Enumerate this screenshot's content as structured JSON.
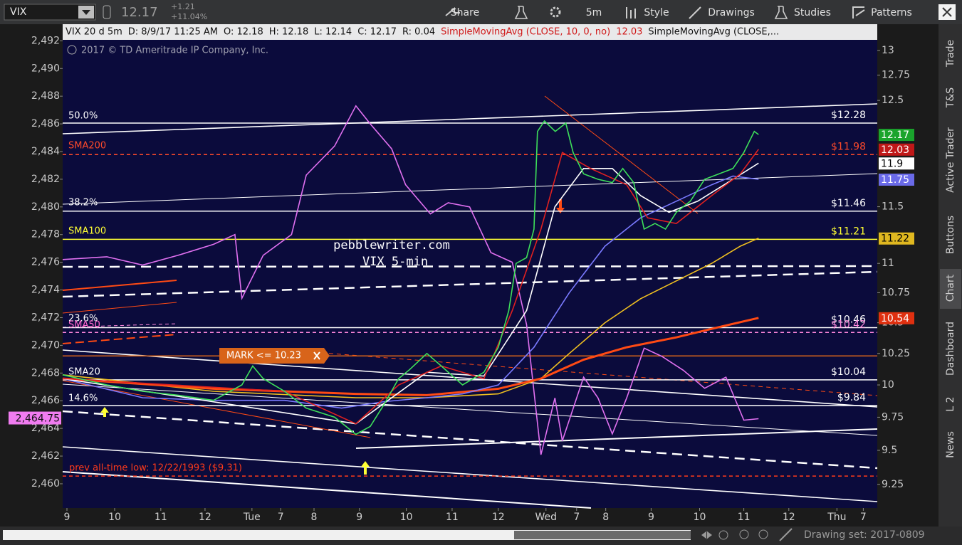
{
  "toolbar": {
    "symbol": "VIX",
    "last": "12.17",
    "change": "+1.21",
    "change_pct": "+11.04%",
    "buttons": [
      "Share",
      "5m",
      "Style",
      "Drawings",
      "Studies",
      "Patterns"
    ]
  },
  "side_tabs": [
    "Trade",
    "T&S",
    "Active Trader",
    "Buttons",
    "Chart",
    "Dashboard",
    "L 2",
    "News"
  ],
  "footer": {
    "drawing_set": "Drawing set: 2017-0809"
  },
  "chart_data": {
    "type": "line",
    "header": [
      "VIX 20 d 5m",
      "D: 8/9/17 11:25 AM",
      "O: 12.18",
      "H: 12.18",
      "L: 12.14",
      "C: 12.17",
      "R: 0.04"
    ],
    "study_1": {
      "label": "SimpleMovingAvg (CLOSE, 10, 0, no)",
      "value": 12.03
    },
    "study_2_label": "SimpleMovingAvg (CLOSE,...",
    "copyright": "2017 © TD Ameritrade IP Company, Inc.",
    "annotations": [
      {
        "text": "50.0%",
        "color": "#ffffff"
      },
      {
        "text": "SMA200",
        "color": "#ff4a2a"
      },
      {
        "text": "38.2%",
        "color": "#ffffff"
      },
      {
        "text": "SMA100",
        "color": "#ffff33"
      },
      {
        "text": "23.6%",
        "color": "#ffffff"
      },
      {
        "text": "SMA50",
        "color": "#ff66cc"
      },
      {
        "text": "SMA20",
        "color": "#ffffff"
      },
      {
        "text": "14.6%",
        "color": "#ffffff"
      },
      {
        "text": "pebblewriter.com",
        "color": "#ffffff"
      },
      {
        "text": "VIX 5-min",
        "color": "#ffffff"
      },
      {
        "text": "prev all-time low: 12/22/1993 ($9.31)",
        "color": "#ff3a1a"
      }
    ],
    "xlim": [
      0,
      210
    ],
    "xticks": [
      {
        "value": 1.1,
        "label": "9"
      },
      {
        "value": 13.4,
        "label": "10"
      },
      {
        "value": 25.3,
        "label": "11"
      },
      {
        "value": 36.7,
        "label": "12"
      },
      {
        "value": 48.8,
        "label": "Tue"
      },
      {
        "value": 56.2,
        "label": "7"
      },
      {
        "value": 64.8,
        "label": "8"
      },
      {
        "value": 76.5,
        "label": "9"
      },
      {
        "value": 88.6,
        "label": "10"
      },
      {
        "value": 100.4,
        "label": "11"
      },
      {
        "value": 112.3,
        "label": "12"
      },
      {
        "value": 124.6,
        "label": "Wed"
      },
      {
        "value": 132.5,
        "label": "7"
      },
      {
        "value": 140,
        "label": "8"
      },
      {
        "value": 151.7,
        "label": "9"
      },
      {
        "value": 164.2,
        "label": "10"
      },
      {
        "value": 175.6,
        "label": "11"
      },
      {
        "value": 187.2,
        "label": "12"
      },
      {
        "value": 199.6,
        "label": "Thu"
      },
      {
        "value": 206.4,
        "label": "7"
      }
    ],
    "log_scale": true,
    "ylim": [
      9.08,
      13.27
    ],
    "yticks": [
      13,
      12.75,
      12.5,
      11.5,
      11,
      10.75,
      10.5,
      10.25,
      10,
      9.75,
      9.5,
      9.25
    ],
    "y2lim": [
      2458.25,
      2493.2
    ],
    "y2ticks": [
      {
        "value": 2460,
        "label": "2,460"
      },
      {
        "value": 2462,
        "label": "2,462"
      },
      {
        "value": 2464,
        "label": "2,464"
      },
      {
        "value": 2466,
        "label": "2,466"
      },
      {
        "value": 2468,
        "label": "2,468"
      },
      {
        "value": 2470,
        "label": "2,470"
      },
      {
        "value": 2472,
        "label": "2,472"
      },
      {
        "value": 2474,
        "label": "2,474"
      },
      {
        "value": 2476,
        "label": "2,476"
      },
      {
        "value": 2478,
        "label": "2,478"
      },
      {
        "value": 2480,
        "label": "2,480"
      },
      {
        "value": 2482,
        "label": "2,482"
      },
      {
        "value": 2484,
        "label": "2,484"
      },
      {
        "value": 2486,
        "label": "2,486"
      },
      {
        "value": 2488,
        "label": "2,488"
      },
      {
        "value": 2490,
        "label": "2,490"
      },
      {
        "value": 2492,
        "label": "2,492"
      }
    ],
    "series": [
      {
        "color": "#e070f0",
        "axis": "y2",
        "x": [
          0,
          11.4,
          20.6,
          29.7,
          38.9,
          44.4,
          46.2,
          51.7,
          59,
          62.8,
          70.1,
          75.6,
          79.3,
          84.8,
          88.4,
          94.8,
          99.4,
          104.9,
          110.4,
          115.9,
          119.6,
          123.3,
          126.9,
          128.8,
          134.3,
          138,
          141.7,
          145.4,
          149.9,
          154.5,
          160,
          165.5,
          171,
          175.6,
          179.4
        ],
        "values": [
          2476.2,
          2476.4,
          2475.8,
          2476.5,
          2477.3,
          2478,
          2473.4,
          2476.5,
          2478,
          2482.3,
          2484.4,
          2487.3,
          2486,
          2484.2,
          2481.6,
          2479.5,
          2480.3,
          2480,
          2476.7,
          2476,
          2471.5,
          2462.1,
          2466.2,
          2463.1,
          2467.7,
          2466.2,
          2463.6,
          2466.2,
          2469.8,
          2469.2,
          2468.2,
          2466.9,
          2467.7,
          2464.6,
          2464.7
        ]
      },
      {
        "color": "#f0c020",
        "x": [
          0,
          38.9,
          75.6,
          93.9,
          112.3,
          123.3,
          130.6,
          139.8,
          149,
          158.2,
          167.3,
          174.7,
          179.4
        ],
        "values": [
          10.08,
          9.95,
          9.9,
          9.9,
          9.93,
          10.05,
          10.25,
          10.5,
          10.7,
          10.85,
          11,
          11.15,
          11.22
        ]
      },
      {
        "color": "#ff4a14",
        "x": [
          0,
          38.9,
          75.6,
          93.9,
          112.3,
          123.3,
          134.3,
          145.4,
          158.2,
          167.3,
          179.4
        ],
        "values": [
          10.05,
          9.97,
          9.93,
          9.92,
          9.97,
          10.05,
          10.2,
          10.3,
          10.38,
          10.45,
          10.54
        ]
      },
      {
        "color": "#7a7aff",
        "x": [
          0,
          20.6,
          38.9,
          57.2,
          71.9,
          82.9,
          93.9,
          103.1,
          112.3,
          121.5,
          130.6,
          139.8,
          149,
          158.2,
          167.3,
          172.8,
          179.4
        ],
        "values": [
          10.05,
          9.9,
          9.88,
          9.88,
          9.82,
          9.87,
          9.9,
          9.93,
          10,
          10.3,
          10.75,
          11.15,
          11.4,
          11.55,
          11.7,
          11.78,
          11.75
        ]
      },
      {
        "color": "#ffffff",
        "x": [
          0,
          75.6,
          93.9,
          108.6,
          119.6,
          126.9,
          134.3,
          141.7,
          149,
          156.3,
          163.7,
          172.8,
          179.4
        ],
        "values": [
          10.05,
          9.7,
          10.1,
          10.07,
          10.6,
          11.5,
          11.85,
          11.85,
          11.6,
          11.45,
          11.55,
          11.75,
          11.9
        ]
      },
      {
        "color": "#e02020",
        "x": [
          0,
          57.2,
          75.6,
          86.6,
          97.6,
          108.6,
          115.9,
          123.3,
          128.8,
          136.1,
          145.4,
          150.8,
          158.2,
          167.3,
          174.7,
          179.4
        ],
        "values": [
          10.05,
          9.95,
          9.7,
          10,
          10.15,
          10.05,
          10.6,
          11.3,
          12,
          11.85,
          11.7,
          11.4,
          11.35,
          11.6,
          11.8,
          12.03
        ]
      },
      {
        "name": "VIX",
        "color": "#3ee05a",
        "x": [
          0,
          11.4,
          20.6,
          29.7,
          38.9,
          46.2,
          49,
          51.7,
          57.2,
          62.8,
          70.1,
          75.6,
          79.3,
          82.9,
          86.6,
          89.4,
          93.9,
          97.6,
          103.1,
          108.6,
          112.3,
          115,
          116.9,
          119.6,
          121.5,
          122.4,
          124.2,
          127,
          129.7,
          131.6,
          134.3,
          138,
          141.7,
          144.4,
          147.2,
          149.9,
          152.7,
          155.4,
          158.2,
          161.8,
          165.5,
          169.2,
          172.8,
          175.6,
          178.3,
          179.4
        ],
        "values": [
          10.08,
          10,
          9.95,
          9.92,
          9.88,
          10,
          10.15,
          10.05,
          9.95,
          9.82,
          9.75,
          9.62,
          9.68,
          9.85,
          10.05,
          10.12,
          10.25,
          10.15,
          10,
          10.1,
          10.3,
          10.6,
          11,
          11.05,
          11.3,
          12.2,
          12.3,
          12.2,
          12.28,
          12,
          11.8,
          11.75,
          11.72,
          11.85,
          11.72,
          11.3,
          11.35,
          11.3,
          11.45,
          11.55,
          11.75,
          11.8,
          11.85,
          12,
          12.2,
          12.17
        ]
      }
    ],
    "levels": [
      {
        "value": 12.28,
        "label": "$12.28",
        "color": "#ffffff",
        "dashed": false
      },
      {
        "value": 11.98,
        "label": "$11.98",
        "color": "#ff4a2a",
        "dashed": true
      },
      {
        "value": 11.46,
        "label": "$11.46",
        "color": "#ffffff",
        "dashed": false
      },
      {
        "value": 11.21,
        "label": "$11.21",
        "color": "#ffff33",
        "dashed": false
      },
      {
        "value": 10.46,
        "label": "$10.46",
        "color": "#ffffff",
        "dashed": false
      },
      {
        "value": 10.42,
        "label": "$10.42",
        "color": "#ff88dd",
        "dashed": true
      },
      {
        "value": 10.04,
        "label": "$10.04",
        "color": "#ffffff",
        "dashed": false
      },
      {
        "value": 9.84,
        "label": "$9.84",
        "color": "#ffffff",
        "dashed": false
      },
      {
        "value": 9.31,
        "label": null,
        "color": "#ff3a1a",
        "dashed": true
      }
    ],
    "mark": {
      "value": 10.23,
      "label": "MARK <= 10.23",
      "color": "#d8641a"
    },
    "price_markers": [
      {
        "value": 12.17,
        "color": "#1aa42c",
        "text_color": "#ffffff"
      },
      {
        "value": 12.03,
        "color": "#c01818",
        "text_color": "#ffffff"
      },
      {
        "value": 11.9,
        "color": "#ffffff",
        "text_color": "#000000"
      },
      {
        "value": 11.75,
        "color": "#6a6ae8",
        "text_color": "#ffffff"
      },
      {
        "value": 11.22,
        "color": "#e0b820",
        "text_color": "#000000"
      },
      {
        "value": 10.54,
        "color": "#e03010",
        "text_color": "#ffffff"
      }
    ],
    "y2_marker": {
      "value": 2464.75,
      "label": "2,464.75",
      "color": "#f07cf0"
    }
  }
}
